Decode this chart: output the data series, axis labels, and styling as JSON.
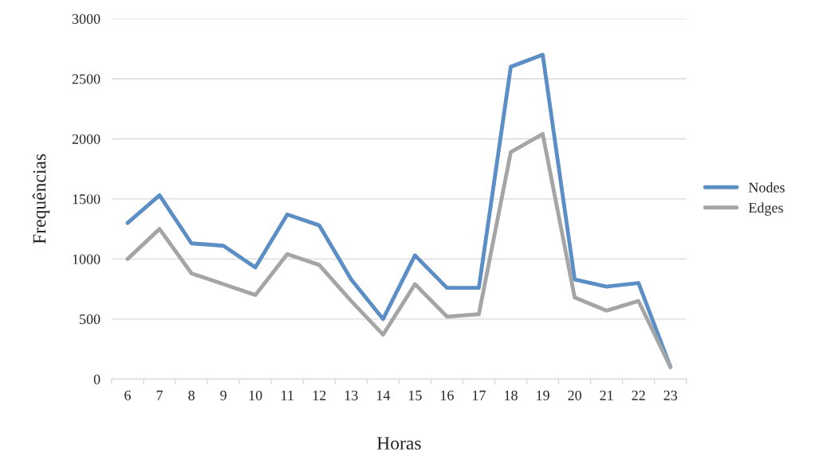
{
  "chart_data": {
    "type": "line",
    "xlabel": "Horas",
    "ylabel": "Frequências",
    "categories": [
      "6",
      "7",
      "8",
      "9",
      "10",
      "11",
      "12",
      "13",
      "14",
      "15",
      "16",
      "17",
      "18",
      "19",
      "20",
      "21",
      "22",
      "23"
    ],
    "series": [
      {
        "name": "Nodes",
        "color": "#5b8ec4",
        "values": [
          1300,
          1530,
          1130,
          1110,
          930,
          1370,
          1280,
          830,
          500,
          1030,
          760,
          760,
          2600,
          2700,
          830,
          770,
          800,
          100
        ]
      },
      {
        "name": "Edges",
        "color": "#a5a5a5",
        "values": [
          1000,
          1250,
          880,
          790,
          700,
          1040,
          950,
          650,
          370,
          790,
          520,
          540,
          1890,
          2040,
          680,
          570,
          650,
          100
        ]
      }
    ],
    "ylim": [
      0,
      3000
    ],
    "yticks": [
      0,
      500,
      1000,
      1500,
      2000,
      2500,
      3000
    ],
    "grid": "y",
    "legend": "right",
    "marker": "none",
    "line_style": "solid"
  }
}
